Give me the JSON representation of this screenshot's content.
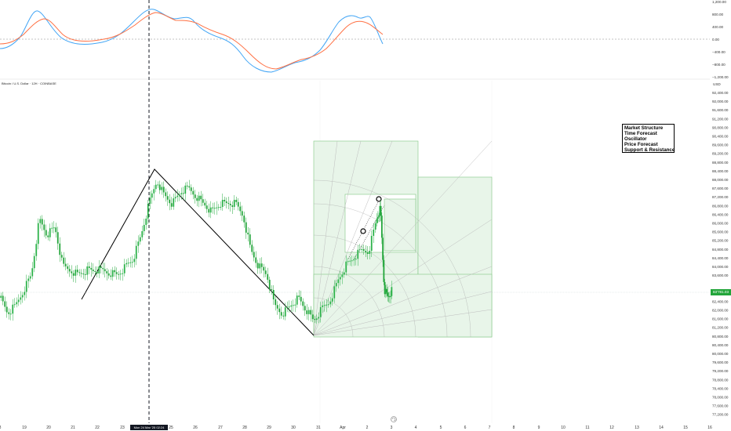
{
  "symbol_title": "Bitcoin / U.S. Dollar · 12H · COINBASE",
  "price_axis_unit": "USD",
  "current_price": "83'781.03",
  "crosshair_date": "Mon 24 Mar '25  02:24",
  "legend": {
    "items": [
      "Market Structure",
      "Time Forecast",
      "Oscillator",
      "Price Forecast",
      "Support & Resistance"
    ]
  },
  "oscillator_axis": [
    "1,200.00",
    "800.00",
    "400.00",
    "0.00",
    "−400.00",
    "−800.00",
    "−1,200.00"
  ],
  "price_axis": [
    "92,400.00",
    "92,000.00",
    "91,600.00",
    "91,200.00",
    "90,800.00",
    "90,400.00",
    "89,600.00",
    "89,200.00",
    "88,800.00",
    "88,400.00",
    "88,000.00",
    "87,600.00",
    "87,200.00",
    "86,800.00",
    "86,400.00",
    "86,000.00",
    "85,600.00",
    "85,200.00",
    "84,800.00",
    "84,400.00",
    "84,000.00",
    "83,600.00",
    "82,800.00",
    "82,400.00",
    "82,000.00",
    "81,600.00",
    "81,200.00",
    "80,800.00",
    "80,400.00",
    "80,000.00",
    "79,600.00",
    "79,200.00",
    "78,800.00",
    "78,400.00",
    "78,000.00",
    "77,600.00",
    "77,200.00"
  ],
  "time_axis": [
    "8",
    "19",
    "20",
    "21",
    "22",
    "23",
    "25",
    "26",
    "27",
    "28",
    "29",
    "30",
    "31",
    "Apr",
    "2",
    "3",
    "4",
    "5",
    "6",
    "7",
    "8",
    "9",
    "10",
    "11",
    "12",
    "13",
    "14",
    "15",
    "16"
  ],
  "colors": {
    "up": "#26a69a",
    "up_green": "#2db24a",
    "down": "#22a53a",
    "macd_blue": "#42a5f5",
    "macd_orange": "#ff7043",
    "box_fill": "#e8f5e9",
    "box_stroke": "#81c784"
  }
}
